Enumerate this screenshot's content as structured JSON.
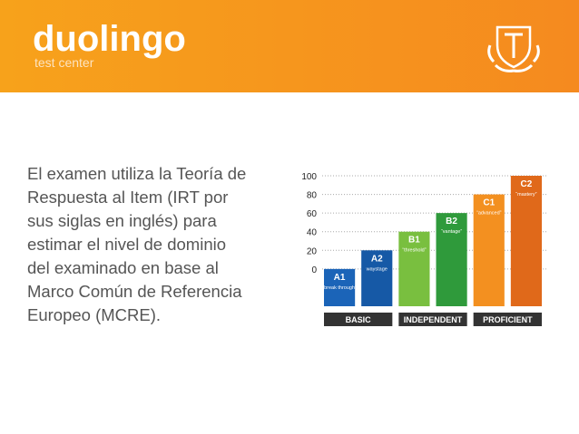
{
  "header": {
    "logo": "duolingo",
    "subtitle": "test center"
  },
  "paragraph": {
    "lines": [
      "El examen utiliza la Teoría de",
      "Respuesta al Item (IRT por",
      "sus siglas en inglés) para",
      "estimar el nivel de dominio",
      "del examinado en base al",
      "Marco Común de Referencia",
      "Europeo (MCRE)."
    ]
  },
  "chart_data": {
    "type": "bar",
    "categories": [
      "A1",
      "A2",
      "B1",
      "B2",
      "C1",
      "C2"
    ],
    "descriptors": [
      "“break through”",
      "waystage",
      "“threshold”",
      "“vantage”",
      "“advanced”",
      "“mastery”"
    ],
    "values": [
      0,
      20,
      40,
      60,
      80,
      100
    ],
    "colors": [
      "#1b64b8",
      "#1659a6",
      "#79bf3f",
      "#2f9a3b",
      "#f39020",
      "#e0691a"
    ],
    "ylim": [
      -40,
      100
    ],
    "yticks": [
      0,
      20,
      40,
      60,
      80,
      100
    ],
    "grid": true,
    "groups": [
      {
        "name": "BASIC",
        "members": [
          "A1",
          "A2"
        ]
      },
      {
        "name": "INDEPENDENT",
        "members": [
          "B1",
          "B2"
        ]
      },
      {
        "name": "PROFICIENT",
        "members": [
          "C1",
          "C2"
        ]
      }
    ]
  }
}
